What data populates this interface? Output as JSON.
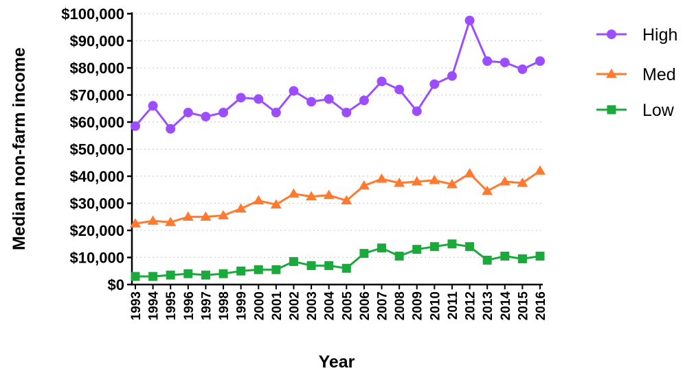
{
  "chart_data": {
    "type": "line",
    "title": "",
    "xlabel": "Year",
    "ylabel": "Median non-farm income",
    "ylim": [
      0,
      100000
    ],
    "ytick_labels": [
      "$0",
      "$10,000",
      "$20,000",
      "$30,000",
      "$40,000",
      "$50,000",
      "$60,000",
      "$70,000",
      "$80,000",
      "$90,000",
      "$100,000"
    ],
    "yticks": [
      0,
      10000,
      20000,
      30000,
      40000,
      50000,
      60000,
      70000,
      80000,
      90000,
      100000
    ],
    "grid": "horizontal dotted",
    "legend_position": "top-right",
    "x": [
      "1993",
      "1994",
      "1995",
      "1996",
      "1997",
      "1998",
      "1999",
      "2000",
      "2001",
      "2002",
      "2003",
      "2004",
      "2005",
      "2006",
      "2007",
      "2008",
      "2009",
      "2010",
      "2011",
      "2012",
      "2013",
      "2014",
      "2015",
      "2016"
    ],
    "series": [
      {
        "name": "High",
        "color": "#9b4dff",
        "marker": "circle",
        "values": [
          58500,
          66000,
          57500,
          63500,
          62000,
          63500,
          69000,
          68500,
          63500,
          71500,
          67500,
          68500,
          63500,
          68000,
          75000,
          72000,
          64000,
          74000,
          77000,
          97500,
          82500,
          82000,
          79500,
          82500
        ]
      },
      {
        "name": "Med",
        "color": "#ff7a2e",
        "marker": "triangle",
        "values": [
          22500,
          23500,
          23000,
          25000,
          25000,
          25500,
          28000,
          31000,
          29500,
          33500,
          32500,
          33000,
          31000,
          36500,
          39000,
          37500,
          38000,
          38500,
          37000,
          41000,
          34500,
          38000,
          37500,
          42000
        ]
      },
      {
        "name": "Low",
        "color": "#1aaa3c",
        "marker": "square",
        "values": [
          3000,
          3000,
          3500,
          4000,
          3500,
          4000,
          5000,
          5500,
          5500,
          8500,
          7000,
          7000,
          6000,
          11500,
          13500,
          10500,
          13000,
          14000,
          15000,
          14000,
          9000,
          10500,
          9500,
          10500
        ]
      }
    ]
  }
}
